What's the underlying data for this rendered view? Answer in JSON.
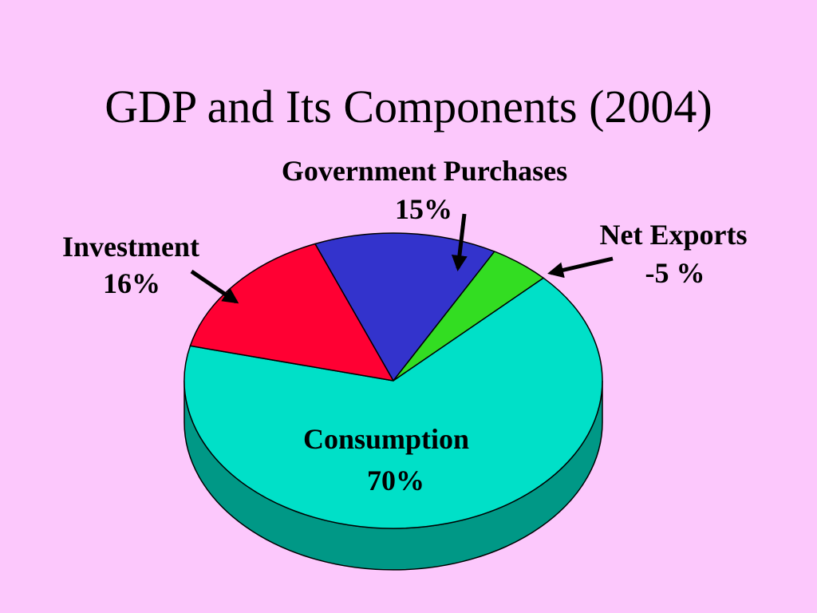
{
  "title": "GDP and Its Components (2004)",
  "chart_data": {
    "type": "pie",
    "title": "GDP and Its Components (2004)",
    "slices": [
      {
        "name": "Consumption",
        "value": 70,
        "label": "70%",
        "color": "#00e0c8",
        "side_color": "#009886"
      },
      {
        "name": "Investment",
        "value": 16,
        "label": "16%",
        "color": "#ff0033",
        "side_color": "#b80025"
      },
      {
        "name": "Government Purchases",
        "value": 15,
        "label": "15%",
        "color": "#3333cc",
        "side_color": "#22228a"
      },
      {
        "name": "Net Exports",
        "value": -5,
        "label": "-5 %",
        "color": "#33dd22",
        "side_color": "#229918"
      }
    ],
    "style": "3d",
    "legend": "none"
  }
}
